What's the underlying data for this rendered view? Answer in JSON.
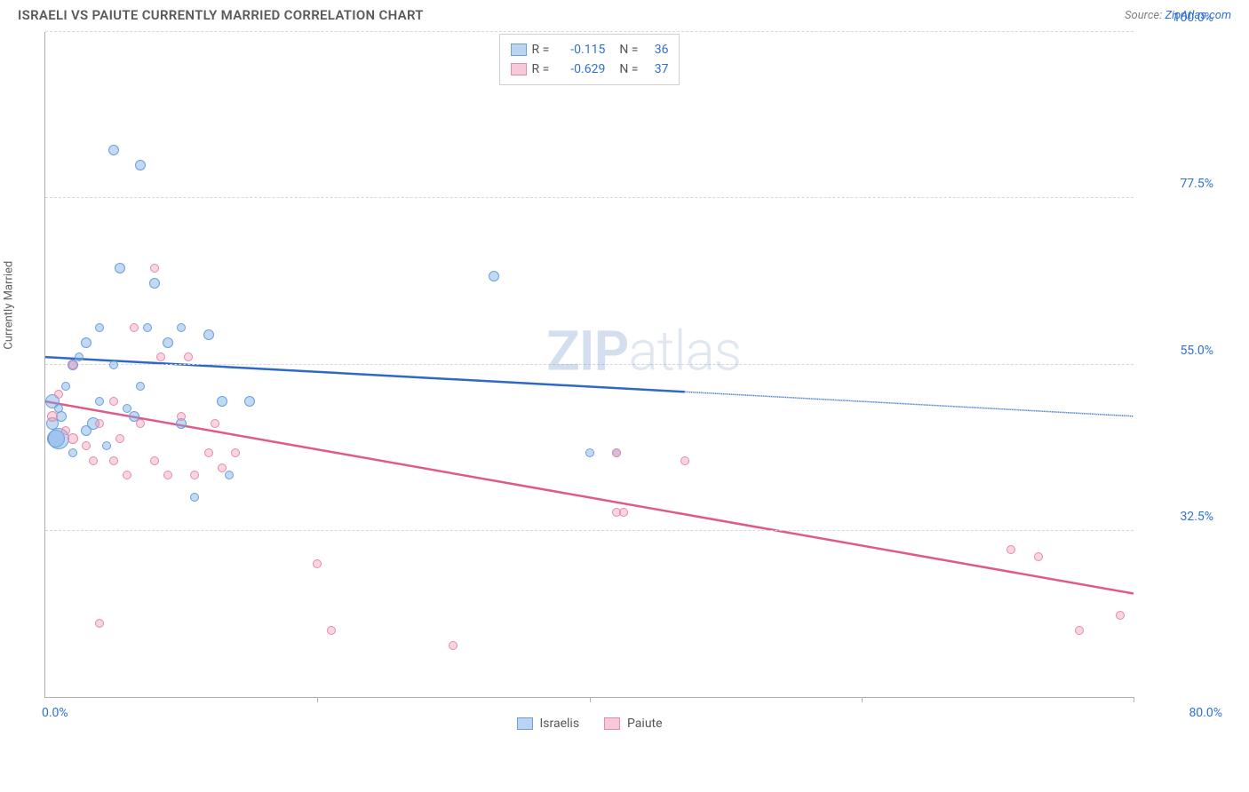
{
  "header": {
    "title": "ISRAELI VS PAIUTE CURRENTLY MARRIED CORRELATION CHART",
    "source_label": "Source:",
    "source_name": "ZipAtlas.com"
  },
  "chart": {
    "type": "scatter",
    "y_axis_label": "Currently Married",
    "watermark_bold": "ZIP",
    "watermark_light": "atlas",
    "xlim": [
      0,
      80
    ],
    "ylim": [
      10,
      100
    ],
    "x_tick_step": 20,
    "x_tick_labels": {
      "min": "0.0%",
      "max": "80.0%"
    },
    "y_gridlines": [
      32.5,
      55.0,
      77.5,
      100.0
    ],
    "y_tick_labels": [
      "32.5%",
      "55.0%",
      "77.5%",
      "100.0%"
    ],
    "background_color": "#ffffff",
    "grid_color": "#d8d8d8",
    "axis_color": "#b0b0b0",
    "value_text_color": "#3070d0",
    "series": [
      {
        "name": "Israelis",
        "marker_fill": "rgba(120,170,230,0.45)",
        "marker_stroke": "#6aa0dd",
        "line_color": "#2e68c9",
        "swatch_fill": "#bcd4f2",
        "swatch_border": "#6aa0dd",
        "R": "-0.115",
        "N": "36",
        "trend": {
          "y_at_xmin": 56.0,
          "y_at_xmax": 48.0,
          "solid_until_x": 47
        },
        "points": [
          {
            "x": 0.5,
            "y": 47,
            "r": 7
          },
          {
            "x": 0.5,
            "y": 50,
            "r": 8
          },
          {
            "x": 0.8,
            "y": 45,
            "r": 10
          },
          {
            "x": 1,
            "y": 49,
            "r": 5
          },
          {
            "x": 1.2,
            "y": 48,
            "r": 6
          },
          {
            "x": 1.5,
            "y": 52,
            "r": 5
          },
          {
            "x": 2,
            "y": 55,
            "r": 6
          },
          {
            "x": 2,
            "y": 43,
            "r": 5
          },
          {
            "x": 2.5,
            "y": 56,
            "r": 5
          },
          {
            "x": 3,
            "y": 58,
            "r": 6
          },
          {
            "x": 3,
            "y": 46,
            "r": 6
          },
          {
            "x": 3.5,
            "y": 47,
            "r": 7
          },
          {
            "x": 4,
            "y": 60,
            "r": 5
          },
          {
            "x": 4,
            "y": 50,
            "r": 5
          },
          {
            "x": 4.5,
            "y": 44,
            "r": 5
          },
          {
            "x": 5,
            "y": 84,
            "r": 6
          },
          {
            "x": 5,
            "y": 55,
            "r": 5
          },
          {
            "x": 5.5,
            "y": 68,
            "r": 6
          },
          {
            "x": 6,
            "y": 49,
            "r": 5
          },
          {
            "x": 6.5,
            "y": 48,
            "r": 6
          },
          {
            "x": 7,
            "y": 82,
            "r": 6
          },
          {
            "x": 7,
            "y": 52,
            "r": 5
          },
          {
            "x": 7.5,
            "y": 60,
            "r": 5
          },
          {
            "x": 8,
            "y": 66,
            "r": 6
          },
          {
            "x": 9,
            "y": 58,
            "r": 6
          },
          {
            "x": 10,
            "y": 47,
            "r": 6
          },
          {
            "x": 10,
            "y": 60,
            "r": 5
          },
          {
            "x": 11,
            "y": 37,
            "r": 5
          },
          {
            "x": 12,
            "y": 59,
            "r": 6
          },
          {
            "x": 13,
            "y": 50,
            "r": 6
          },
          {
            "x": 13.5,
            "y": 40,
            "r": 5
          },
          {
            "x": 15,
            "y": 50,
            "r": 6
          },
          {
            "x": 33,
            "y": 67,
            "r": 6
          },
          {
            "x": 40,
            "y": 43,
            "r": 5
          },
          {
            "x": 42,
            "y": 43,
            "r": 5
          },
          {
            "x": 1,
            "y": 45,
            "r": 12
          }
        ]
      },
      {
        "name": "Paiute",
        "marker_fill": "rgba(240,150,180,0.40)",
        "marker_stroke": "#e68aa8",
        "line_color": "#e05a88",
        "swatch_fill": "#f6c8d8",
        "swatch_border": "#e68aa8",
        "R": "-0.629",
        "N": "37",
        "trend": {
          "y_at_xmin": 50.0,
          "y_at_xmax": 24.0,
          "solid_until_x": 80
        },
        "points": [
          {
            "x": 0.5,
            "y": 48,
            "r": 6
          },
          {
            "x": 1,
            "y": 51,
            "r": 5
          },
          {
            "x": 1.5,
            "y": 46,
            "r": 5
          },
          {
            "x": 2,
            "y": 45,
            "r": 6
          },
          {
            "x": 2,
            "y": 55,
            "r": 5
          },
          {
            "x": 3,
            "y": 44,
            "r": 5
          },
          {
            "x": 3.5,
            "y": 42,
            "r": 5
          },
          {
            "x": 4,
            "y": 20,
            "r": 5
          },
          {
            "x": 4,
            "y": 47,
            "r": 5
          },
          {
            "x": 5,
            "y": 42,
            "r": 5
          },
          {
            "x": 5,
            "y": 50,
            "r": 5
          },
          {
            "x": 5.5,
            "y": 45,
            "r": 5
          },
          {
            "x": 6,
            "y": 40,
            "r": 5
          },
          {
            "x": 6.5,
            "y": 60,
            "r": 5
          },
          {
            "x": 7,
            "y": 47,
            "r": 5
          },
          {
            "x": 8,
            "y": 68,
            "r": 5
          },
          {
            "x": 8,
            "y": 42,
            "r": 5
          },
          {
            "x": 8.5,
            "y": 56,
            "r": 5
          },
          {
            "x": 9,
            "y": 40,
            "r": 5
          },
          {
            "x": 10,
            "y": 48,
            "r": 5
          },
          {
            "x": 10.5,
            "y": 56,
            "r": 5
          },
          {
            "x": 11,
            "y": 40,
            "r": 5
          },
          {
            "x": 12,
            "y": 43,
            "r": 5
          },
          {
            "x": 12.5,
            "y": 47,
            "r": 5
          },
          {
            "x": 13,
            "y": 41,
            "r": 5
          },
          {
            "x": 14,
            "y": 43,
            "r": 5
          },
          {
            "x": 20,
            "y": 28,
            "r": 5
          },
          {
            "x": 21,
            "y": 19,
            "r": 5
          },
          {
            "x": 30,
            "y": 17,
            "r": 5
          },
          {
            "x": 42,
            "y": 35,
            "r": 5
          },
          {
            "x": 42.5,
            "y": 35,
            "r": 5
          },
          {
            "x": 42,
            "y": 43,
            "r": 5
          },
          {
            "x": 47,
            "y": 42,
            "r": 5
          },
          {
            "x": 71,
            "y": 30,
            "r": 5
          },
          {
            "x": 73,
            "y": 29,
            "r": 5
          },
          {
            "x": 76,
            "y": 19,
            "r": 5
          },
          {
            "x": 79,
            "y": 21,
            "r": 5
          }
        ]
      }
    ]
  }
}
